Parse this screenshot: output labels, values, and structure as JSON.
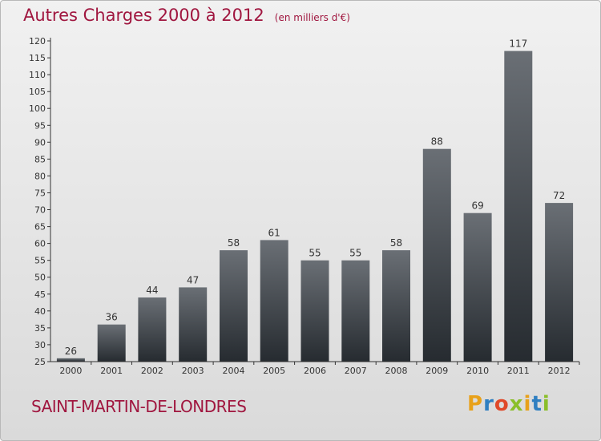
{
  "header": {
    "title": "Autres Charges 2000 à 2012",
    "unit": "(en milliers d'€)"
  },
  "footer": {
    "city": "SAINT-MARTIN-DE-LONDRES",
    "logo_letters": [
      "P",
      "r",
      "o",
      "x",
      "i",
      "t",
      "i"
    ],
    "logo_colors": [
      "#e8a11a",
      "#2f7fc1",
      "#e0492a",
      "#8bbf2a",
      "#e8a11a",
      "#2f7fc1",
      "#8bbf2a"
    ]
  },
  "colors": {
    "title": "#a0163f",
    "bar_top": "#6a6f75",
    "bar_bottom": "#262b30",
    "axis": "#333333"
  },
  "chart_data": {
    "type": "bar",
    "title": "Autres Charges 2000 à 2012",
    "subtitle": "(en milliers d'€)",
    "categories": [
      "2000",
      "2001",
      "2002",
      "2003",
      "2004",
      "2005",
      "2006",
      "2007",
      "2008",
      "2009",
      "2010",
      "2011",
      "2012"
    ],
    "values": [
      26,
      36,
      44,
      47,
      58,
      61,
      55,
      55,
      58,
      88,
      69,
      117,
      72
    ],
    "ylim": [
      25,
      120
    ],
    "yticks": [
      25,
      30,
      35,
      40,
      45,
      50,
      55,
      60,
      65,
      70,
      75,
      80,
      85,
      90,
      95,
      100,
      105,
      110,
      115,
      120
    ],
    "grid": false
  }
}
